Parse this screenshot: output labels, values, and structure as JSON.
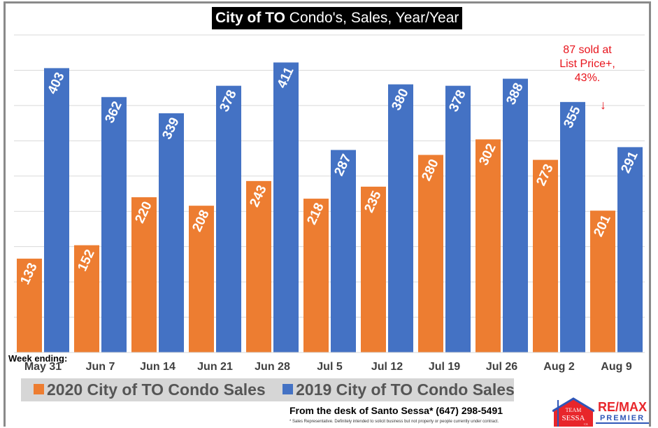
{
  "chart_data": {
    "type": "bar",
    "title_bold": "City of TO",
    "title_rest": " Condo's, Sales, Year/Year",
    "xlabel": "Week ending:",
    "ylabel": "",
    "ylim": [
      0,
      450
    ],
    "grid": true,
    "categories": [
      "May 31",
      "Jun 7",
      "Jun 14",
      "Jun 21",
      "Jun 28",
      "Jul 5",
      "Jul 12",
      "Jul 19",
      "Jul 26",
      "Aug 2",
      "Aug 9"
    ],
    "series": [
      {
        "name": "2020 City of TO Condo Sales",
        "color": "#ed7d31",
        "values": [
          133,
          152,
          220,
          208,
          243,
          218,
          235,
          280,
          302,
          273,
          201
        ]
      },
      {
        "name": "2019 City of TO Condo Sales",
        "color": "#4472c4",
        "values": [
          403,
          362,
          339,
          378,
          411,
          287,
          380,
          378,
          388,
          355,
          291
        ]
      }
    ],
    "legend_position": "bottom",
    "annotation": {
      "lines": [
        "87 sold at",
        "List Price+,",
        "43%."
      ],
      "arrow": "↓",
      "color": "#e8141c"
    }
  },
  "footer": {
    "text": "From the desk of Santo Sessa* (647) 298-5491",
    "disclaimer": "* Sales Representative.  Definitely  intended to solicit  business  but not property or people currently  under contract."
  },
  "logos": {
    "team": {
      "line1": "TEAM",
      "line2": "SESSA",
      "line3": "CA"
    },
    "remax": {
      "top": "RE/MAX",
      "bottom": "PREMIER"
    }
  }
}
